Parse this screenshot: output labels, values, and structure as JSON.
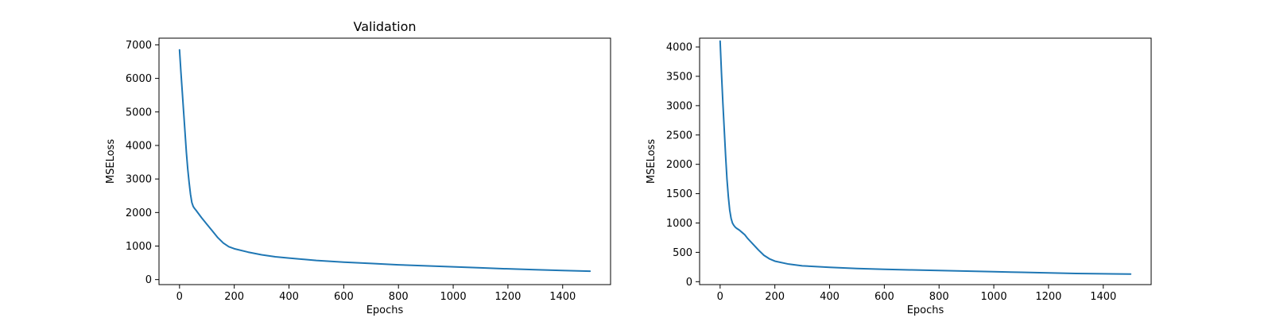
{
  "chart_data": [
    {
      "type": "line",
      "title": "Validation",
      "xlabel": "Epochs",
      "ylabel": "MSELoss",
      "xlim": [
        -75,
        1575
      ],
      "ylim": [
        -150,
        7200
      ],
      "xticks": [
        0,
        200,
        400,
        600,
        800,
        1000,
        1200,
        1400
      ],
      "yticks": [
        0,
        1000,
        2000,
        3000,
        4000,
        5000,
        6000,
        7000
      ],
      "grid": false,
      "series": [
        {
          "color": "#1f77b4",
          "x": [
            0,
            5,
            10,
            15,
            20,
            25,
            30,
            35,
            40,
            45,
            50,
            55,
            60,
            70,
            80,
            100,
            120,
            140,
            160,
            180,
            200,
            250,
            300,
            350,
            400,
            500,
            600,
            700,
            800,
            900,
            1000,
            1100,
            1200,
            1300,
            1400,
            1500
          ],
          "y": [
            6850,
            6200,
            5600,
            5000,
            4400,
            3800,
            3300,
            2900,
            2550,
            2300,
            2180,
            2120,
            2070,
            1960,
            1850,
            1650,
            1450,
            1250,
            1090,
            980,
            920,
            820,
            740,
            680,
            640,
            570,
            520,
            480,
            440,
            410,
            380,
            350,
            320,
            295,
            270,
            250
          ]
        }
      ]
    },
    {
      "type": "line",
      "title": "",
      "xlabel": "Epochs",
      "ylabel": "MSELoss",
      "xlim": [
        -75,
        1575
      ],
      "ylim": [
        -50,
        4150
      ],
      "xticks": [
        0,
        200,
        400,
        600,
        800,
        1000,
        1200,
        1400
      ],
      "yticks": [
        0,
        500,
        1000,
        1500,
        2000,
        2500,
        3000,
        3500,
        4000
      ],
      "grid": false,
      "series": [
        {
          "color": "#1f77b4",
          "x": [
            0,
            5,
            10,
            15,
            20,
            25,
            30,
            35,
            40,
            45,
            50,
            55,
            60,
            70,
            80,
            90,
            100,
            110,
            120,
            140,
            160,
            180,
            200,
            250,
            300,
            400,
            500,
            600,
            700,
            800,
            900,
            1000,
            1100,
            1200,
            1300,
            1400,
            1500
          ],
          "y": [
            4100,
            3550,
            3050,
            2600,
            2150,
            1750,
            1450,
            1220,
            1080,
            1000,
            960,
            930,
            910,
            880,
            840,
            800,
            740,
            690,
            640,
            540,
            450,
            390,
            350,
            300,
            270,
            245,
            225,
            210,
            200,
            190,
            180,
            170,
            160,
            150,
            140,
            135,
            130
          ]
        }
      ]
    }
  ]
}
